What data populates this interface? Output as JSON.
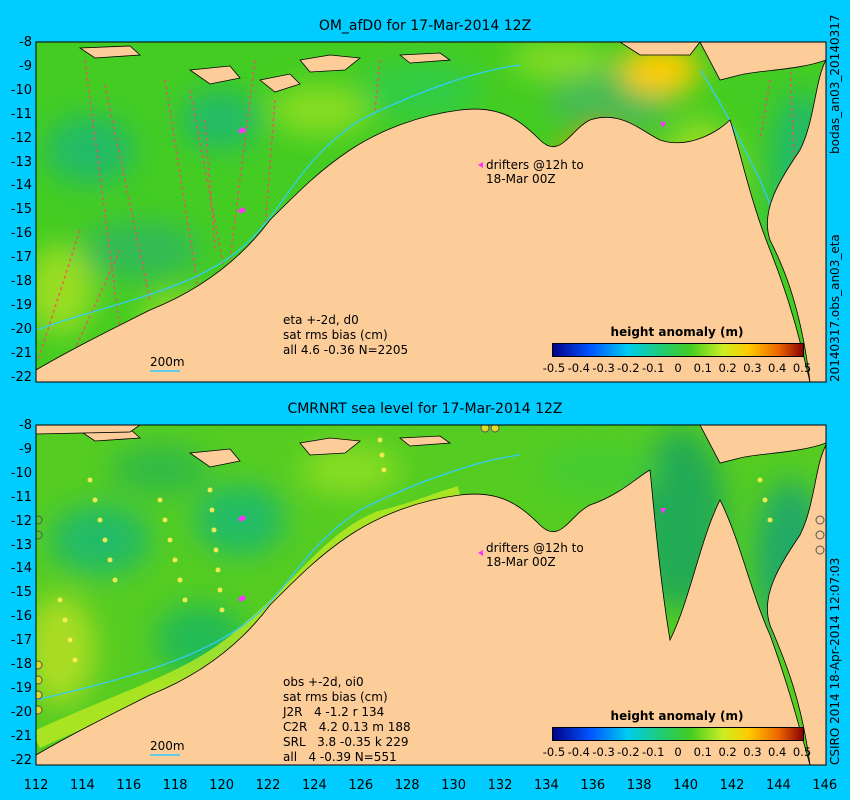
{
  "panels": [
    {
      "title": "OM_afD0 for 17-Mar-2014 12Z",
      "stats": "eta +-2d, d0\nsat rms bias (cm)\nall 4.6 -0.36 N=2205",
      "drifter_note": "drifters @12h to\n18-Mar 00Z",
      "scale_label": "200m",
      "colorbar_title": "height anomaly (m)",
      "side_text": "20140317.obs_an03_eta",
      "side_text_top": "bodas_an03_20140317"
    },
    {
      "title": "CMRNRT sea level  for 17-Mar-2014 12Z",
      "stats": "obs +-2d, oi0\nsat rms bias (cm)\nJ2R   4 -1.2 r 134\nC2R   4.2 0.13 m 188\nSRL   3.8 -0.35 k 229\nall   4 -0.39 N=551",
      "drifter_note": "drifters @12h to\n18-Mar 00Z",
      "scale_label": "200m",
      "colorbar_title": "height anomaly (m)",
      "side_text": "CSIRO 2014  18-Apr-2014 12:07:03"
    }
  ],
  "y_ticks": [
    "-8",
    "-9",
    "-10",
    "-11",
    "-12",
    "-13",
    "-14",
    "-15",
    "-16",
    "-17",
    "-18",
    "-19",
    "-20",
    "-21",
    "-22"
  ],
  "x_ticks": [
    "112",
    "114",
    "116",
    "118",
    "120",
    "122",
    "124",
    "126",
    "128",
    "130",
    "132",
    "134",
    "136",
    "138",
    "140",
    "142",
    "144",
    "146"
  ],
  "colorbar_ticks": [
    "-0.5",
    "-0.4",
    "-0.3",
    "-0.2",
    "-0.1",
    "0",
    "0.1",
    "0.2",
    "0.3",
    "0.4",
    "0.5"
  ],
  "colors": {
    "background": "#00ccff",
    "land": "#fccc99",
    "sea_base": "#33cc33",
    "bathymetry_line": "#33ccff",
    "drifter": "#ff33ff"
  }
}
